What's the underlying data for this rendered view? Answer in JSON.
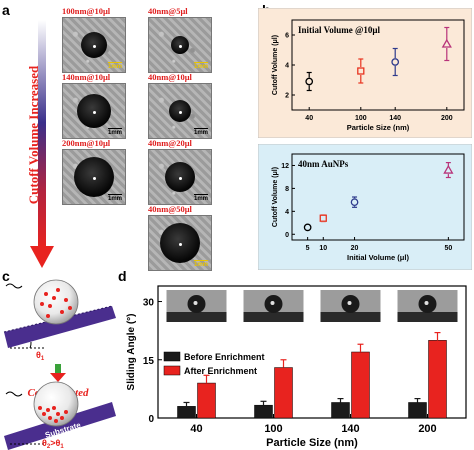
{
  "panels": {
    "a": "a",
    "b": "b",
    "c": "c",
    "d": "d"
  },
  "panel_a": {
    "side_label": "Cutoff Volume Increased",
    "left_column": [
      {
        "label": "100nm@10μl",
        "scale": "1mm",
        "scale_color": "yellow"
      },
      {
        "label": "140nm@10μl",
        "scale": "1mm",
        "scale_color": "black"
      },
      {
        "label": "200nm@10μl",
        "scale": "1mm",
        "scale_color": "black"
      }
    ],
    "right_column": [
      {
        "label": "40nm@5μl",
        "scale": "1mm",
        "scale_color": "yellow"
      },
      {
        "label": "40nm@10μl",
        "scale": "1mm",
        "scale_color": "black"
      },
      {
        "label": "40nm@20μl",
        "scale": "1mm",
        "scale_color": "black"
      },
      {
        "label": "40nm@50μl",
        "scale": "1mm",
        "scale_color": "yellow"
      }
    ]
  },
  "panel_c": {
    "substrate": "Substrate",
    "theta1": "θ",
    "theta1_sub": "1",
    "concentrated": "Concentrated",
    "theta2": "θ",
    "theta2_sub": "2",
    "gt": ">",
    "theta2_cmp": "θ",
    "theta2_cmp_sub": "1"
  },
  "chart_data": [
    {
      "id": "b-top",
      "type": "scatter",
      "title": "Initial Volume @10μl",
      "xlabel": "Particle Size (nm)",
      "ylabel": "Cutoff Volume (μl)",
      "x_ticks": [
        40,
        100,
        140,
        200
      ],
      "y_ticks": [
        2,
        4,
        6
      ],
      "xlim": [
        20,
        220
      ],
      "ylim": [
        1,
        7
      ],
      "background": "#fbe9d8",
      "points": [
        {
          "x": 40,
          "y": 2.9,
          "err": 0.6,
          "color": "#000000",
          "marker": "circle"
        },
        {
          "x": 100,
          "y": 3.6,
          "err": 0.8,
          "color": "#e8331f",
          "marker": "square"
        },
        {
          "x": 140,
          "y": 4.2,
          "err": 0.9,
          "color": "#2e3a8c",
          "marker": "circle"
        },
        {
          "x": 200,
          "y": 5.4,
          "err": 1.1,
          "color": "#b8337a",
          "marker": "triangle"
        }
      ]
    },
    {
      "id": "b-bottom",
      "type": "scatter",
      "title": "40nm AuNPs",
      "xlabel": "Initial Volume (μl)",
      "ylabel": "Cutoff Volume (μl)",
      "x_ticks": [
        5,
        10,
        20,
        50
      ],
      "x_tick_positions": [
        5,
        10,
        20,
        50
      ],
      "y_ticks": [
        0,
        4,
        8,
        12
      ],
      "xlim": [
        0,
        55
      ],
      "ylim": [
        -1,
        14
      ],
      "background": "#d9eef7",
      "points": [
        {
          "x": 5,
          "y": 1.2,
          "err": 0.5,
          "color": "#000000",
          "marker": "circle"
        },
        {
          "x": 10,
          "y": 2.8,
          "err": 0.6,
          "color": "#e8331f",
          "marker": "square"
        },
        {
          "x": 20,
          "y": 5.6,
          "err": 0.9,
          "color": "#2e3a8c",
          "marker": "circle"
        },
        {
          "x": 50,
          "y": 11.2,
          "err": 1.3,
          "color": "#b8337a",
          "marker": "triangle"
        }
      ]
    },
    {
      "id": "d",
      "type": "bar",
      "xlabel": "Particle Size (nm)",
      "ylabel": "Sliding Angle (°)",
      "categories": [
        "40",
        "100",
        "140",
        "200"
      ],
      "y_ticks": [
        0,
        15,
        30
      ],
      "ylim": [
        0,
        34
      ],
      "series": [
        {
          "name": "Before Enrichment",
          "color": "#1a1a1a",
          "values": [
            3.0,
            3.3,
            4.0,
            4.0
          ],
          "errors": [
            1.0,
            1.0,
            1.0,
            1.0
          ]
        },
        {
          "name": "After Enrichment",
          "color": "#e8231f",
          "values": [
            9.0,
            13.0,
            17.0,
            20.0
          ],
          "errors": [
            2.0,
            2.0,
            2.0,
            2.0
          ]
        }
      ],
      "legend_position": "top-left"
    }
  ]
}
